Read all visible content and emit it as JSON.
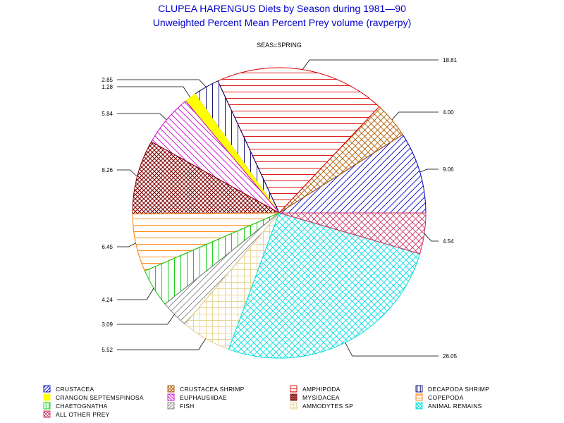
{
  "chart_data": {
    "type": "pie",
    "title": "CLUPEA HARENGUS Diets by Season during 1981—90",
    "subtitle": "Unweighted Percent Mean Percent Prey  volume (ravperpy)",
    "group_label": "SEAS=SPRING",
    "slices": [
      {
        "name": "CRUSTACEA",
        "value": 9.06,
        "label": "9.06",
        "color": "#0000cc",
        "pattern": "diag-fwd"
      },
      {
        "name": "CRUSTACEA SHRIMP",
        "value": 4.0,
        "label": "4.00",
        "color": "#b05a00",
        "pattern": "cross-diag"
      },
      {
        "name": "AMPHIPODA",
        "value": 18.81,
        "label": "18.81",
        "color": "#dd0000",
        "pattern": "horizontal"
      },
      {
        "name": "DECAPODA SHRIMP",
        "value": 2.85,
        "label": "2.85",
        "color": "#000066",
        "pattern": "vertical"
      },
      {
        "name": "CRANGON SEPTEMSPINOSA",
        "value": 1.28,
        "label": "1.28",
        "color": "#ffff00",
        "pattern": "solid"
      },
      {
        "name": "EUPHAUSIIDAE",
        "value": 5.84,
        "label": "5.84",
        "color": "#cc00cc",
        "pattern": "diag-back"
      },
      {
        "name": "MYSIDACEA",
        "value": 8.26,
        "label": "8.26",
        "color": "#800000",
        "pattern": "cross-diag-dense"
      },
      {
        "name": "COPEPODA",
        "value": 6.45,
        "label": "6.45",
        "color": "#ff8000",
        "pattern": "horizontal"
      },
      {
        "name": "CHAETOGNATHA",
        "value": 4.24,
        "label": "4.24",
        "color": "#00cc00",
        "pattern": "vertical"
      },
      {
        "name": "FISH",
        "value": 3.09,
        "label": "3.09",
        "color": "#808080",
        "pattern": "diag-fwd"
      },
      {
        "name": "AMMODYTES SP",
        "value": 5.52,
        "label": "5.52",
        "color": "#e6d28c",
        "pattern": "grid"
      },
      {
        "name": "ANIMAL REMAINS",
        "value": 26.05,
        "label": "26.05",
        "color": "#00dddd",
        "pattern": "cross-diag"
      },
      {
        "name": "ALL OTHER PREY",
        "value": 4.54,
        "label": "4.54",
        "color": "#cc3366",
        "pattern": "cross-diag"
      }
    ],
    "legend_placement": "bottom",
    "legend_order": [
      "CRUSTACEA",
      "CRUSTACEA SHRIMP",
      "AMPHIPODA",
      "DECAPODA SHRIMP",
      "CRANGON SEPTEMSPINOSA",
      "EUPHAUSIIDAE",
      "MYSIDACEA",
      "COPEPODA",
      "CHAETOGNATHA",
      "FISH",
      "AMMODYTES SP",
      "ANIMAL REMAINS",
      "ALL OTHER PREY"
    ]
  }
}
